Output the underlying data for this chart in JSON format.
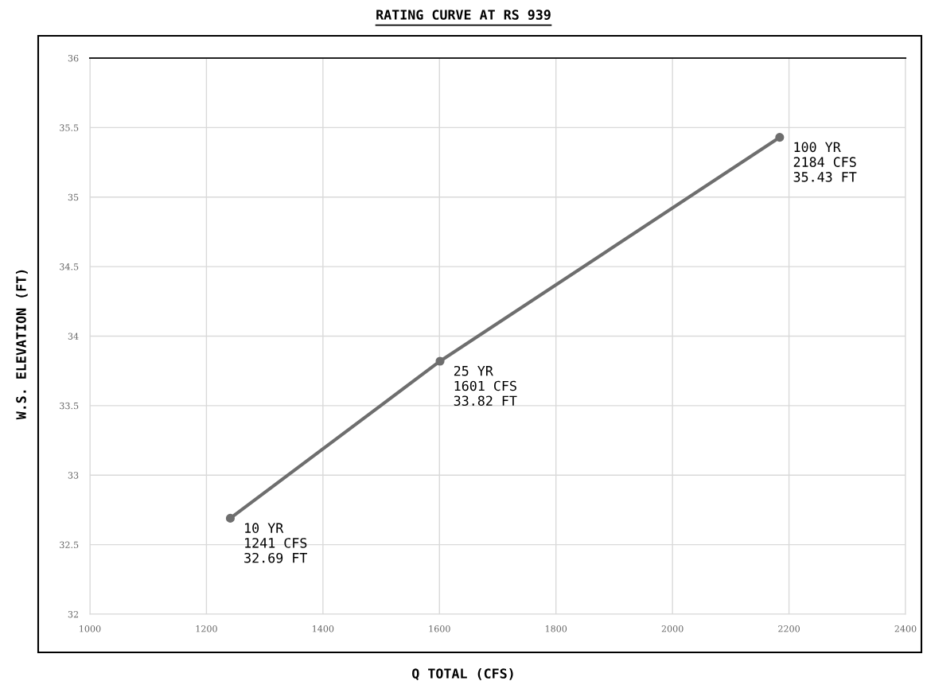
{
  "chart_data": {
    "type": "line",
    "title": "RATING CURVE AT RS 939",
    "xlabel": "Q TOTAL (CFS)",
    "ylabel": "W.S. ELEVATION (FT)",
    "x": [
      1241,
      1601,
      2184
    ],
    "series": [
      {
        "color": "#6e6e6e",
        "values": [
          32.69,
          33.82,
          35.43
        ]
      }
    ],
    "xlim": [
      1000,
      2400
    ],
    "xticks": [
      1000,
      1200,
      1400,
      1600,
      1800,
      2000,
      2200,
      2400
    ],
    "ylim": [
      32,
      36
    ],
    "yticks": [
      32,
      32.5,
      33,
      33.5,
      34,
      34.5,
      35,
      35.5,
      36
    ],
    "grid": true,
    "marker": "circle",
    "line_style": "solid",
    "annotations": [
      {
        "text": "10 YR\n1241 CFS\n32.69 FT",
        "x": 1241,
        "y": 32.69
      },
      {
        "text": "25 YR\n1601 CFS\n33.82 FT",
        "x": 1601,
        "y": 33.82
      },
      {
        "text": "100 YR\n2184 CFS\n35.43 FT",
        "x": 2184,
        "y": 35.43
      }
    ]
  }
}
